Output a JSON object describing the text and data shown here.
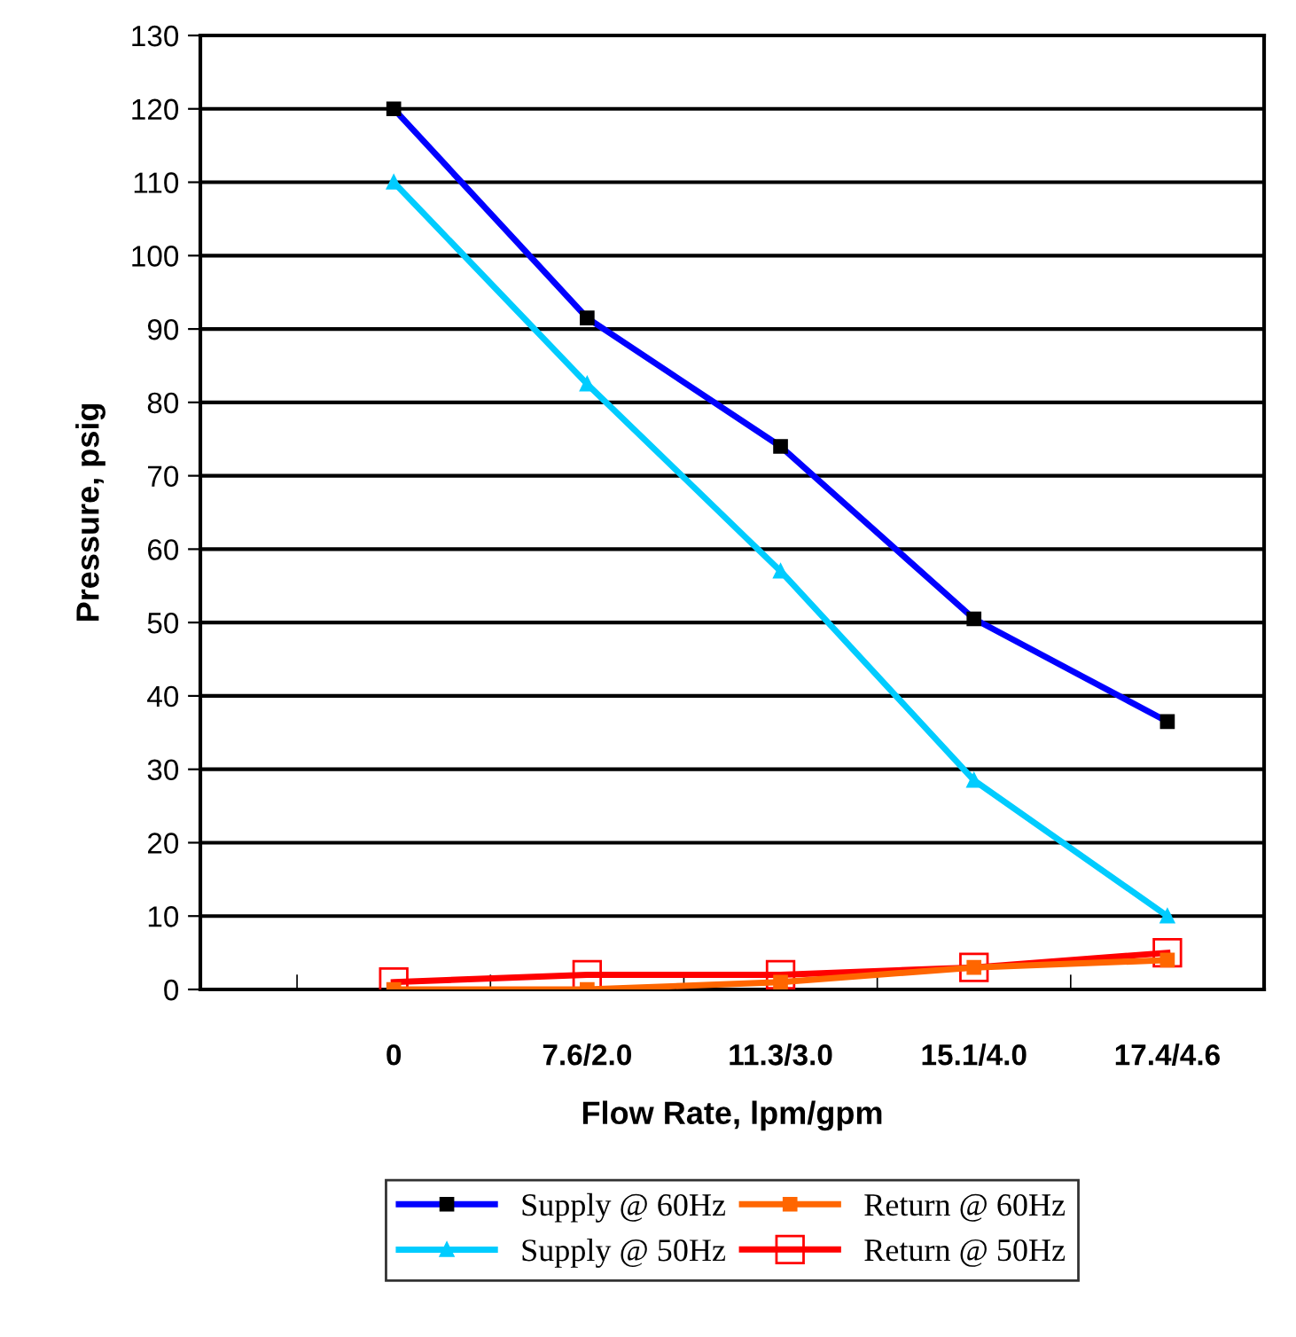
{
  "chart_data": {
    "type": "line",
    "xlabel": "Flow Rate, lpm/gpm",
    "ylabel": "Pressure, psig",
    "categories": [
      "0",
      "7.6/2.0",
      "11.3/3.0",
      "15.1/4.0",
      "17.4/4.6"
    ],
    "series": [
      {
        "name": "Supply @ 60Hz",
        "color": "#0000ff",
        "marker": "square",
        "values": [
          120,
          91.5,
          74,
          50.5,
          36.5
        ]
      },
      {
        "name": "Supply @ 50Hz",
        "color": "#00ccff",
        "marker": "triangle",
        "values": [
          110,
          82.5,
          57,
          28.5,
          10
        ]
      },
      {
        "name": "Return @ 60Hz",
        "color": "#ff6600",
        "marker": "square",
        "values": [
          0,
          0,
          1,
          3,
          4
        ]
      },
      {
        "name": "Return @ 50Hz",
        "color": "#ff0000",
        "marker": "square",
        "values": [
          1,
          2,
          2,
          3,
          5
        ]
      }
    ],
    "ylim": [
      0,
      130
    ],
    "yticks": [
      0,
      10,
      20,
      30,
      40,
      50,
      60,
      70,
      80,
      90,
      100,
      110,
      120,
      130
    ],
    "grid": "y",
    "legend": "bottom",
    "line_style": "solid"
  }
}
